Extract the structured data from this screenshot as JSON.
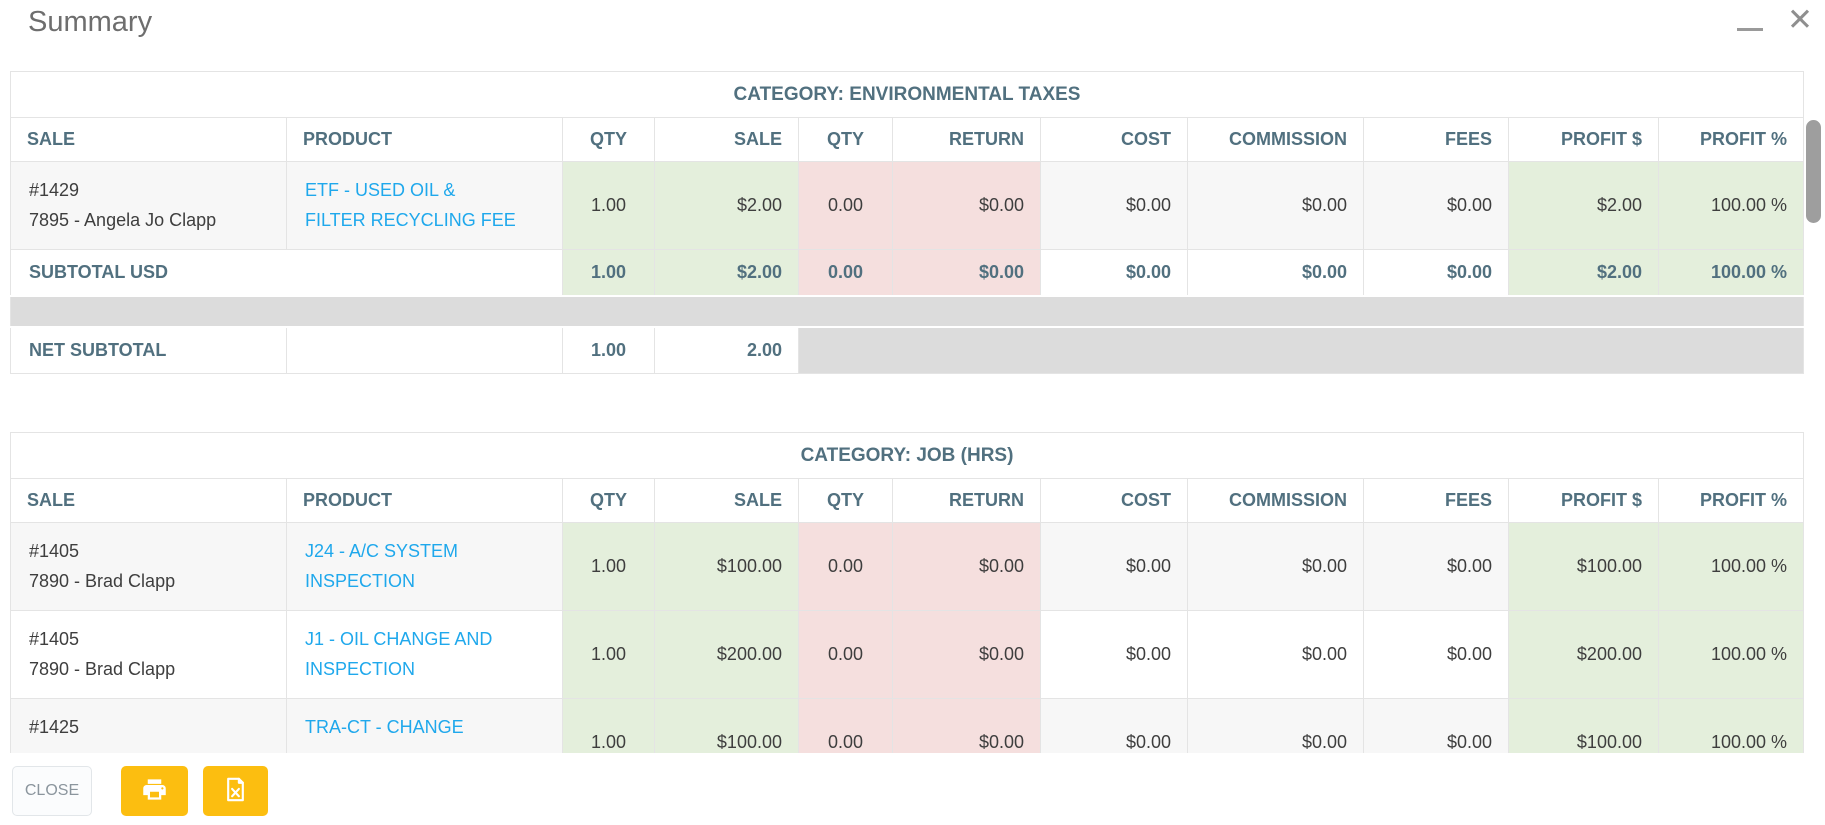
{
  "window": {
    "title": "Summary",
    "controls": {
      "minimize": "minimize-icon",
      "close_glyph": "✕"
    }
  },
  "columns": [
    "SALE",
    "PRODUCT",
    "QTY",
    "SALE",
    "QTY",
    "RETURN",
    "COST",
    "COMMISSION",
    "FEES",
    "PROFIT $",
    "PROFIT %"
  ],
  "tables": [
    {
      "title": "CATEGORY: ENVIRONMENTAL TAXES",
      "rows": [
        {
          "type": "data",
          "stripe": true,
          "sale_lines": [
            "#1429",
            "7895 - Angela Jo Clapp"
          ],
          "product_lines": [
            "ETF - USED OIL &",
            "FILTER RECYCLING FEE"
          ],
          "values": [
            "1.00",
            "$2.00",
            "0.00",
            "$0.00",
            "$0.00",
            "$0.00",
            "$0.00",
            "$2.00",
            "100.00 %"
          ]
        },
        {
          "type": "subtotal",
          "label": "SUBTOTAL USD",
          "values": [
            "1.00",
            "$2.00",
            "0.00",
            "$0.00",
            "$0.00",
            "$0.00",
            "$0.00",
            "$2.00",
            "100.00 %"
          ]
        },
        {
          "type": "spacer"
        },
        {
          "type": "net",
          "label": "NET SUBTOTAL",
          "qty": "1.00",
          "sale": "2.00"
        }
      ]
    },
    {
      "title": "CATEGORY: JOB (HRS)",
      "rows": [
        {
          "type": "data",
          "stripe": true,
          "sale_lines": [
            "#1405",
            "7890 - Brad Clapp"
          ],
          "product_lines": [
            "J24 - A/C SYSTEM",
            "INSPECTION"
          ],
          "values": [
            "1.00",
            "$100.00",
            "0.00",
            "$0.00",
            "$0.00",
            "$0.00",
            "$0.00",
            "$100.00",
            "100.00 %"
          ]
        },
        {
          "type": "data",
          "stripe": false,
          "sale_lines": [
            "#1405",
            "7890 - Brad Clapp"
          ],
          "product_lines": [
            "J1 - OIL CHANGE AND",
            "INSPECTION"
          ],
          "values": [
            "1.00",
            "$200.00",
            "0.00",
            "$0.00",
            "$0.00",
            "$0.00",
            "$0.00",
            "$200.00",
            "100.00 %"
          ]
        },
        {
          "type": "data",
          "stripe": true,
          "sale_lines": [
            "#1425"
          ],
          "product_lines": [
            "TRA-CT - CHANGE"
          ],
          "values": [
            "1.00",
            "$100.00",
            "0.00",
            "$0.00",
            "$0.00",
            "$0.00",
            "$0.00",
            "$100.00",
            "100.00 %"
          ]
        }
      ]
    }
  ],
  "footer": {
    "close_label": "CLOSE",
    "print_icon": "printer-icon",
    "excel_icon": "excel-export-icon"
  },
  "colors": {
    "accent_yellow": "#fcbe10",
    "link_blue": "#1fa8ec",
    "sale_green": "#e4efdc",
    "return_pink": "#f5dfde",
    "header_slate": "#51707f",
    "spacer_gray": "#dcdcdc"
  }
}
